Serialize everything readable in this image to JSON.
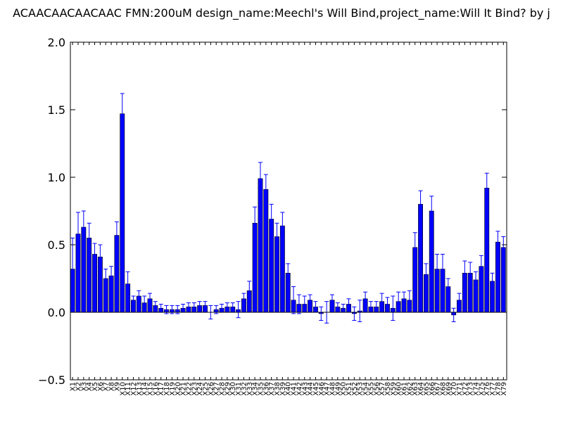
{
  "chart_data": {
    "type": "bar",
    "title": "ACAACAACAACAAC  FMN:200uM  design_name:Meechl's Will Bind,project_name:Will It Bind? by j",
    "xlabel": "",
    "ylabel": "",
    "ylim": [
      -0.5,
      2.0
    ],
    "yticks": [
      "−0.5",
      "0.0",
      "0.5",
      "1.0",
      "1.5",
      "2.0"
    ],
    "ytick_values": [
      -0.5,
      0.0,
      0.5,
      1.0,
      1.5,
      2.0
    ],
    "grid": false,
    "bar_color": "#0000ff",
    "error_color": "#0000ff",
    "categories": [
      "X1",
      "X2",
      "X3",
      "X4",
      "X5",
      "X6",
      "X7",
      "X8",
      "X9",
      "X10",
      "X11",
      "X12",
      "X13",
      "X14",
      "X15",
      "X16",
      "X17",
      "X18",
      "X19",
      "X20",
      "X21",
      "X22",
      "X23",
      "X24",
      "X25",
      "X26",
      "X27",
      "X28",
      "X29",
      "X30",
      "X31",
      "X32",
      "X33",
      "X34",
      "X35",
      "X36",
      "X37",
      "X38",
      "X39",
      "X40",
      "X41",
      "X42",
      "X43",
      "X44",
      "X45",
      "X46",
      "X47",
      "X48",
      "X49",
      "X50",
      "X51",
      "X52",
      "X53",
      "X54",
      "X55",
      "X56",
      "X57",
      "X58",
      "X59",
      "X60",
      "X61",
      "X62",
      "X63",
      "X64",
      "X65",
      "X66",
      "X67",
      "X68",
      "X69",
      "X70",
      "X71",
      "X72",
      "X73",
      "X74",
      "X75",
      "X76",
      "X77",
      "X78",
      "X79"
    ],
    "values": [
      0.32,
      0.58,
      0.63,
      0.55,
      0.43,
      0.41,
      0.25,
      0.27,
      0.57,
      1.47,
      0.21,
      0.09,
      0.12,
      0.07,
      0.1,
      0.05,
      0.03,
      0.02,
      0.02,
      0.02,
      0.03,
      0.04,
      0.04,
      0.05,
      0.05,
      0.0,
      0.02,
      0.03,
      0.04,
      0.04,
      0.02,
      0.1,
      0.16,
      0.66,
      0.99,
      0.91,
      0.69,
      0.56,
      0.64,
      0.29,
      0.09,
      0.06,
      0.06,
      0.09,
      0.04,
      -0.01,
      0.0,
      0.09,
      0.04,
      0.03,
      0.06,
      -0.01,
      0.01,
      0.1,
      0.04,
      0.04,
      0.08,
      0.06,
      0.03,
      0.08,
      0.1,
      0.09,
      0.48,
      0.8,
      0.28,
      0.75,
      0.32,
      0.32,
      0.19,
      -0.02,
      0.09,
      0.29,
      0.29,
      0.24,
      0.34,
      0.92,
      0.23,
      0.52,
      0.48
    ],
    "errors": [
      0.23,
      0.16,
      0.12,
      0.11,
      0.08,
      0.09,
      0.07,
      0.07,
      0.1,
      0.15,
      0.09,
      0.03,
      0.04,
      0.05,
      0.04,
      0.03,
      0.03,
      0.03,
      0.03,
      0.03,
      0.03,
      0.03,
      0.03,
      0.03,
      0.03,
      0.05,
      0.03,
      0.03,
      0.03,
      0.03,
      0.06,
      0.04,
      0.07,
      0.12,
      0.12,
      0.11,
      0.11,
      0.1,
      0.1,
      0.07,
      0.1,
      0.07,
      0.06,
      0.04,
      0.04,
      0.05,
      0.08,
      0.04,
      0.03,
      0.03,
      0.04,
      0.05,
      0.08,
      0.05,
      0.04,
      0.04,
      0.06,
      0.05,
      0.09,
      0.07,
      0.05,
      0.07,
      0.11,
      0.1,
      0.08,
      0.11,
      0.11,
      0.11,
      0.06,
      0.05,
      0.05,
      0.09,
      0.08,
      0.06,
      0.08,
      0.11,
      0.06,
      0.08,
      0.08
    ]
  }
}
